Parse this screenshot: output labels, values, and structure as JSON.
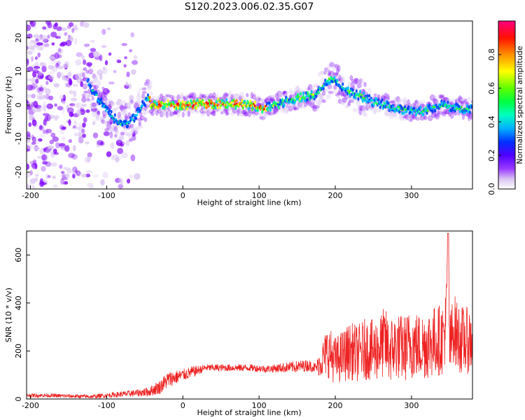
{
  "title": "S120.2023.006.02.35.G07",
  "colors": {
    "snr_line": "#ee2222",
    "colormap": [
      "#ffffff",
      "#d9c2f2",
      "#8000ff",
      "#0040ff",
      "#00c0ff",
      "#00ff80",
      "#40ff00",
      "#ffff00",
      "#ff8000",
      "#ff0000",
      "#ff0080"
    ]
  },
  "chart_data": [
    {
      "type": "heatmap",
      "title": "S120.2023.006.02.35.G07",
      "xlabel": "Height of straight line (km)",
      "ylabel": "Frequency (Hz)",
      "xlim": [
        -205,
        380
      ],
      "ylim": [
        -25,
        25
      ],
      "x_ticks": [
        -200,
        -100,
        0,
        100,
        200,
        300
      ],
      "y_ticks": [
        -20,
        -10,
        0,
        10,
        20
      ],
      "colorbar": {
        "label": "Normalized spectral amplitude",
        "range": [
          0.0,
          1.0
        ],
        "ticks": [
          0.0,
          0.2,
          0.4,
          0.6,
          0.8
        ],
        "tick_labels": [
          "0.0",
          "0.2",
          "0.4",
          "0.6",
          "0.8"
        ]
      },
      "ridge": {
        "x": [
          -125,
          -115,
          -105,
          -95,
          -85,
          -75,
          -65,
          -58,
          -50,
          -45,
          -40,
          -30,
          0,
          50,
          90,
          105,
          120,
          150,
          175,
          185,
          195,
          200,
          210,
          230,
          250,
          280,
          310,
          325,
          340,
          360,
          380
        ],
        "y": [
          7,
          3,
          0,
          -3,
          -5,
          -6,
          -4,
          -2,
          1,
          2,
          0,
          0,
          0,
          0.5,
          0,
          -1,
          0,
          2,
          3,
          6,
          8,
          7,
          5,
          3,
          1,
          -1,
          -2,
          -1,
          0,
          -1,
          -1
        ]
      }
    },
    {
      "type": "line",
      "xlabel": "Height of straight line (km)",
      "ylabel": "SNR (10 * v/v)",
      "xlim": [
        -205,
        380
      ],
      "ylim": [
        0,
        700
      ],
      "x_ticks": [
        -200,
        -100,
        0,
        100,
        200,
        300
      ],
      "y_ticks": [
        0,
        200,
        400,
        600
      ],
      "series": [
        {
          "x": [
            -205,
            -180,
            -150,
            -120,
            -100,
            -80,
            -60,
            -45,
            -30,
            -20,
            -10,
            0,
            10,
            20,
            30,
            50,
            70,
            90,
            110,
            130,
            150,
            165,
            175,
            180,
            190,
            200,
            210,
            220,
            230,
            240,
            250,
            260,
            265,
            270,
            280,
            290,
            300,
            310,
            320,
            330,
            340,
            345,
            348,
            350,
            355,
            360,
            370,
            380
          ],
          "y": [
            15,
            15,
            12,
            10,
            15,
            20,
            25,
            30,
            50,
            80,
            90,
            100,
            110,
            120,
            130,
            130,
            130,
            130,
            125,
            130,
            135,
            140,
            130,
            150,
            200,
            160,
            180,
            200,
            190,
            210,
            200,
            220,
            240,
            200,
            220,
            210,
            230,
            220,
            230,
            240,
            250,
            300,
            700,
            200,
            300,
            260,
            240,
            250
          ],
          "spread": [
            8,
            8,
            8,
            8,
            10,
            12,
            15,
            20,
            30,
            35,
            30,
            25,
            25,
            20,
            15,
            15,
            15,
            15,
            15,
            20,
            25,
            25,
            20,
            60,
            110,
            100,
            110,
            120,
            120,
            130,
            130,
            140,
            150,
            140,
            140,
            140,
            150,
            140,
            150,
            150,
            150,
            150,
            0,
            150,
            150,
            150,
            140,
            140
          ]
        }
      ]
    }
  ]
}
